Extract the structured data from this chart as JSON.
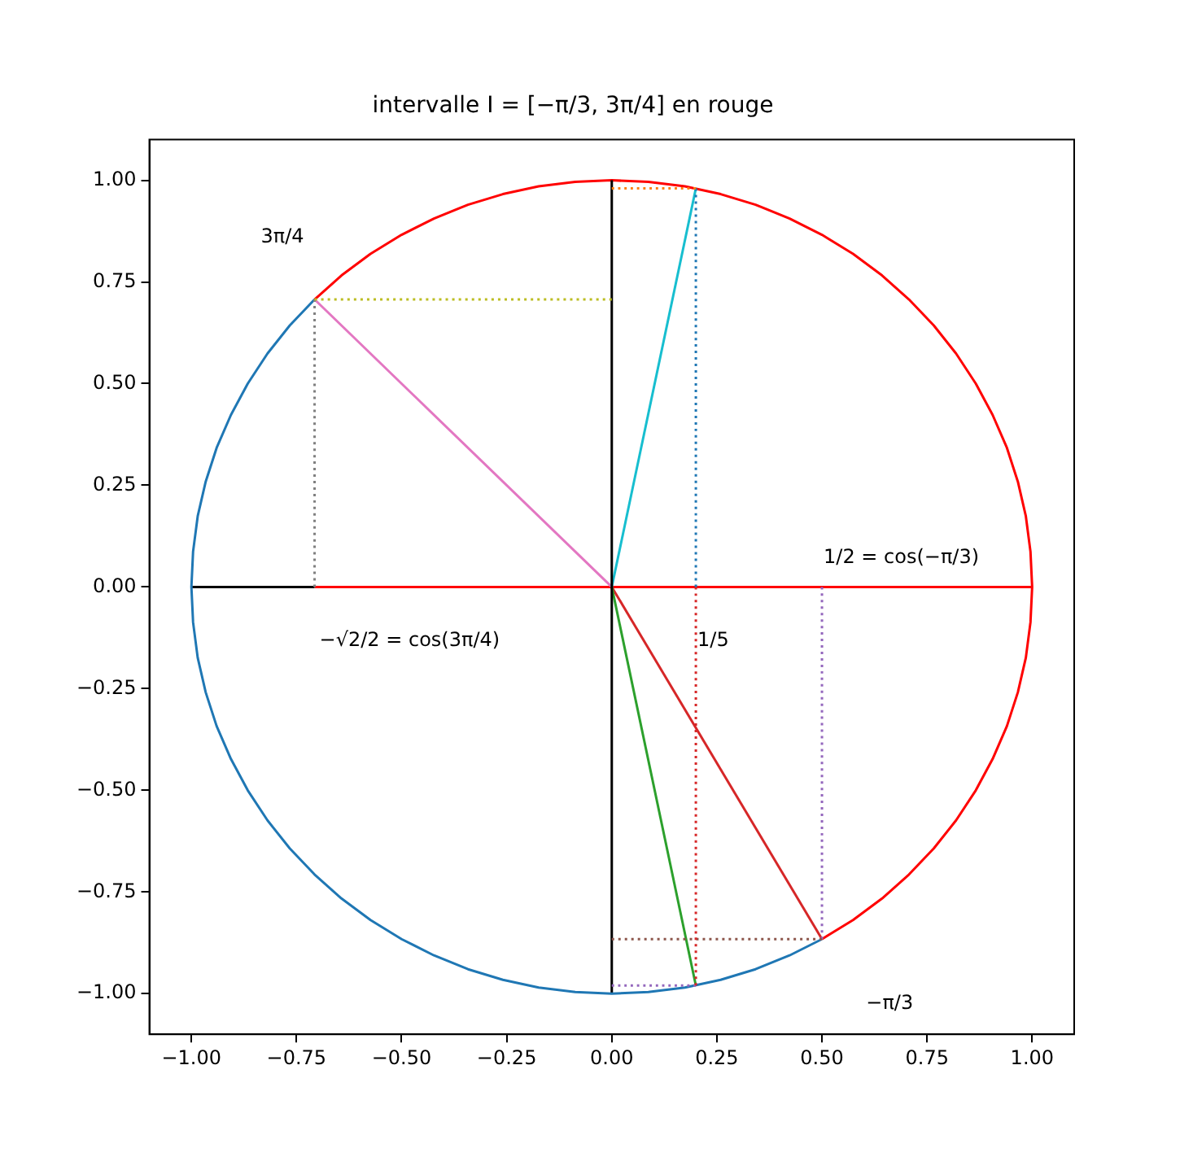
{
  "chart_data": {
    "type": "line",
    "title": "intervalle I = [−π/3, 3π/4] en rouge",
    "xlim": [
      -1.1,
      1.1
    ],
    "ylim": [
      -1.1,
      1.1
    ],
    "xticks": [
      {
        "value": -1,
        "label": "−1.00"
      },
      {
        "value": -0.75,
        "label": "−0.75"
      },
      {
        "value": -0.5,
        "label": "−0.50"
      },
      {
        "value": -0.25,
        "label": "−0.25"
      },
      {
        "value": 0,
        "label": "0.00"
      },
      {
        "value": 0.25,
        "label": "0.25"
      },
      {
        "value": 0.5,
        "label": "0.50"
      },
      {
        "value": 0.75,
        "label": "0.75"
      },
      {
        "value": 1,
        "label": "1.00"
      }
    ],
    "yticks": [
      {
        "value": -1,
        "label": "−1.00"
      },
      {
        "value": -0.75,
        "label": "−0.75"
      },
      {
        "value": -0.5,
        "label": "−0.50"
      },
      {
        "value": -0.25,
        "label": "−0.25"
      },
      {
        "value": 0,
        "label": "0.00"
      },
      {
        "value": 0.25,
        "label": "0.25"
      },
      {
        "value": 0.5,
        "label": "0.50"
      },
      {
        "value": 0.75,
        "label": "0.75"
      },
      {
        "value": 1,
        "label": "1.00"
      }
    ],
    "grid": false,
    "legend": false,
    "marker": "none",
    "series": [
      {
        "color": "#1f77b4",
        "line_style": "solid",
        "x": [
          -0.707,
          -0.766,
          -0.819,
          -0.866,
          -0.906,
          -0.94,
          -0.966,
          -0.985,
          -0.996,
          -1,
          -0.996,
          -0.985,
          -0.966,
          -0.94,
          -0.906,
          -0.866,
          -0.819,
          -0.766,
          -0.707,
          -0.643,
          -0.574,
          -0.5,
          -0.423,
          -0.342,
          -0.259,
          -0.174,
          -0.087,
          0,
          0.087,
          0.174,
          0.259,
          0.342,
          0.423,
          0.5
        ],
        "values": [
          0.707,
          0.643,
          0.574,
          0.5,
          0.423,
          0.342,
          0.259,
          0.174,
          0.087,
          0,
          -0.087,
          -0.174,
          -0.259,
          -0.342,
          -0.423,
          -0.5,
          -0.574,
          -0.643,
          -0.707,
          -0.766,
          -0.819,
          -0.866,
          -0.906,
          -0.94,
          -0.966,
          -0.985,
          -0.996,
          -1,
          -0.996,
          -0.985,
          -0.966,
          -0.94,
          -0.906,
          -0.866
        ]
      },
      {
        "color": "#000000",
        "line_style": "solid",
        "x": [
          0,
          0
        ],
        "values": [
          -1,
          1
        ]
      },
      {
        "color": "#000000",
        "line_style": "solid",
        "x": [
          -1,
          -0.707
        ],
        "values": [
          0,
          0
        ]
      },
      {
        "color": "#17becf",
        "line_style": "solid",
        "x": [
          0,
          0.2
        ],
        "values": [
          0,
          0.98
        ]
      },
      {
        "color": "#ff7f0e",
        "line_style": "dotted",
        "x": [
          0,
          0.2
        ],
        "values": [
          0.98,
          0.98
        ]
      },
      {
        "color": "#1f77b4",
        "line_style": "dotted",
        "x": [
          0.2,
          0.2
        ],
        "values": [
          0.98,
          0
        ]
      },
      {
        "color": "#2ca02c",
        "line_style": "solid",
        "x": [
          0,
          0.2
        ],
        "values": [
          0,
          -0.98
        ]
      },
      {
        "color": "#d62728",
        "line_style": "dotted",
        "x": [
          0.2,
          0.2
        ],
        "values": [
          0,
          -0.98
        ]
      },
      {
        "color": "#9467bd",
        "line_style": "dotted",
        "x": [
          0,
          0.2
        ],
        "values": [
          -0.98,
          -0.98
        ]
      },
      {
        "color": "#d62728",
        "line_style": "solid",
        "x": [
          0,
          0.5
        ],
        "values": [
          0,
          -0.866
        ]
      },
      {
        "color": "#8c564b",
        "line_style": "dotted",
        "x": [
          0,
          0.5
        ],
        "values": [
          -0.866,
          -0.866
        ]
      },
      {
        "color": "#9467bd",
        "line_style": "dotted",
        "x": [
          0.5,
          0.5
        ],
        "values": [
          0,
          -0.866
        ]
      },
      {
        "color": "#e377c2",
        "line_style": "solid",
        "x": [
          0,
          -0.707
        ],
        "values": [
          0,
          0.707
        ]
      },
      {
        "color": "#bcbd22",
        "line_style": "dotted",
        "x": [
          -0.707,
          0
        ],
        "values": [
          0.707,
          0.707
        ]
      },
      {
        "color": "#7f7f7f",
        "line_style": "dotted",
        "x": [
          -0.707,
          -0.707
        ],
        "values": [
          0.707,
          0
        ]
      },
      {
        "color": "#ff0000",
        "line_style": "solid",
        "x": [
          -0.707,
          1
        ],
        "values": [
          0,
          0
        ]
      },
      {
        "color": "#ff0000",
        "line_style": "solid",
        "x": [
          0.5,
          0.574,
          0.643,
          0.707,
          0.766,
          0.819,
          0.866,
          0.906,
          0.94,
          0.966,
          0.985,
          0.996,
          1,
          0.996,
          0.985,
          0.966,
          0.94,
          0.906,
          0.866,
          0.819,
          0.766,
          0.707,
          0.643,
          0.574,
          0.5,
          0.423,
          0.342,
          0.259,
          0.174,
          0.087,
          0,
          -0.087,
          -0.174,
          -0.259,
          -0.342,
          -0.423,
          -0.5,
          -0.574,
          -0.643,
          -0.707
        ],
        "values": [
          -0.866,
          -0.819,
          -0.766,
          -0.707,
          -0.643,
          -0.574,
          -0.5,
          -0.423,
          -0.342,
          -0.259,
          -0.174,
          -0.087,
          0,
          0.087,
          0.174,
          0.259,
          0.342,
          0.423,
          0.5,
          0.574,
          0.643,
          0.707,
          0.766,
          0.819,
          0.866,
          0.906,
          0.94,
          0.966,
          0.985,
          0.996,
          1,
          0.996,
          0.985,
          0.966,
          0.94,
          0.906,
          0.866,
          0.819,
          0.766,
          0.707
        ]
      }
    ],
    "annotations": [
      {
        "text": "3π/4",
        "x": -0.707,
        "y": 0.707
      },
      {
        "text": "1/2 = cos(−π/3)",
        "x": 0.5,
        "y": 0
      },
      {
        "text": "−√2/2 = cos(3π/4)",
        "x": -0.707,
        "y": 0
      },
      {
        "text": "1/5",
        "x": 0.2,
        "y": 0
      },
      "−π/3"
    ]
  }
}
